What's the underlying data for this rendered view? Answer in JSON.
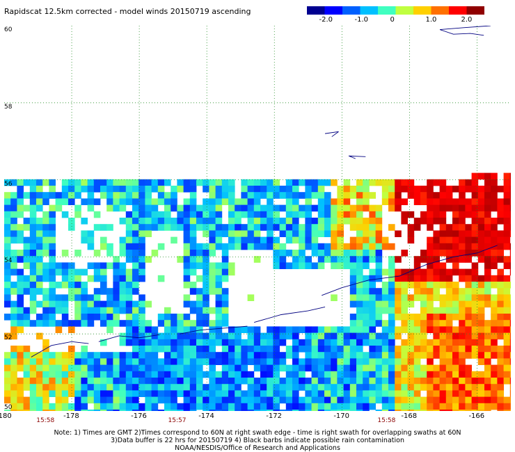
{
  "title": "Rapidscat 12.5km corrected - model winds 20150719 ascending",
  "colorbar": {
    "colors": [
      "#000090",
      "#0000ff",
      "#0060ff",
      "#00c0ff",
      "#40ffc0",
      "#c0ff40",
      "#ffd000",
      "#ff7000",
      "#ff0000",
      "#900000"
    ],
    "ticks": [
      {
        "label": "-2.0",
        "value": -2.0
      },
      {
        "label": "-1.0",
        "value": -1.0
      },
      {
        "label": "0",
        "value": 0
      },
      {
        "label": "1.0",
        "value": 1.0
      },
      {
        "label": "2.0",
        "value": 2.0
      }
    ]
  },
  "map": {
    "lat_range": [
      50,
      60
    ],
    "lon_range": [
      -180,
      -165
    ],
    "lat_labels": [
      "60",
      "58",
      "56",
      "54",
      "52",
      "50"
    ],
    "lon_labels": [
      "-180",
      "-178",
      "-176",
      "-174",
      "-172",
      "-170",
      "-168",
      "-166"
    ],
    "times": [
      {
        "label": "15:58",
        "lon": -178.8
      },
      {
        "label": "15:57",
        "lon": -174.9
      },
      {
        "label": "15:58",
        "lon": -168.7
      }
    ],
    "grid": "dotted green"
  },
  "notes": [
    "Note: 1) Times are GMT 2)Times correspond to 60N at right swath edge - time is right swath for overlapping swaths at 60N",
    "3)Data buffer is 22 hrs for 20150719 4) Black barbs indicate possible rain contamination",
    "NOAA/NESDIS/Office of Research and Applications"
  ]
}
